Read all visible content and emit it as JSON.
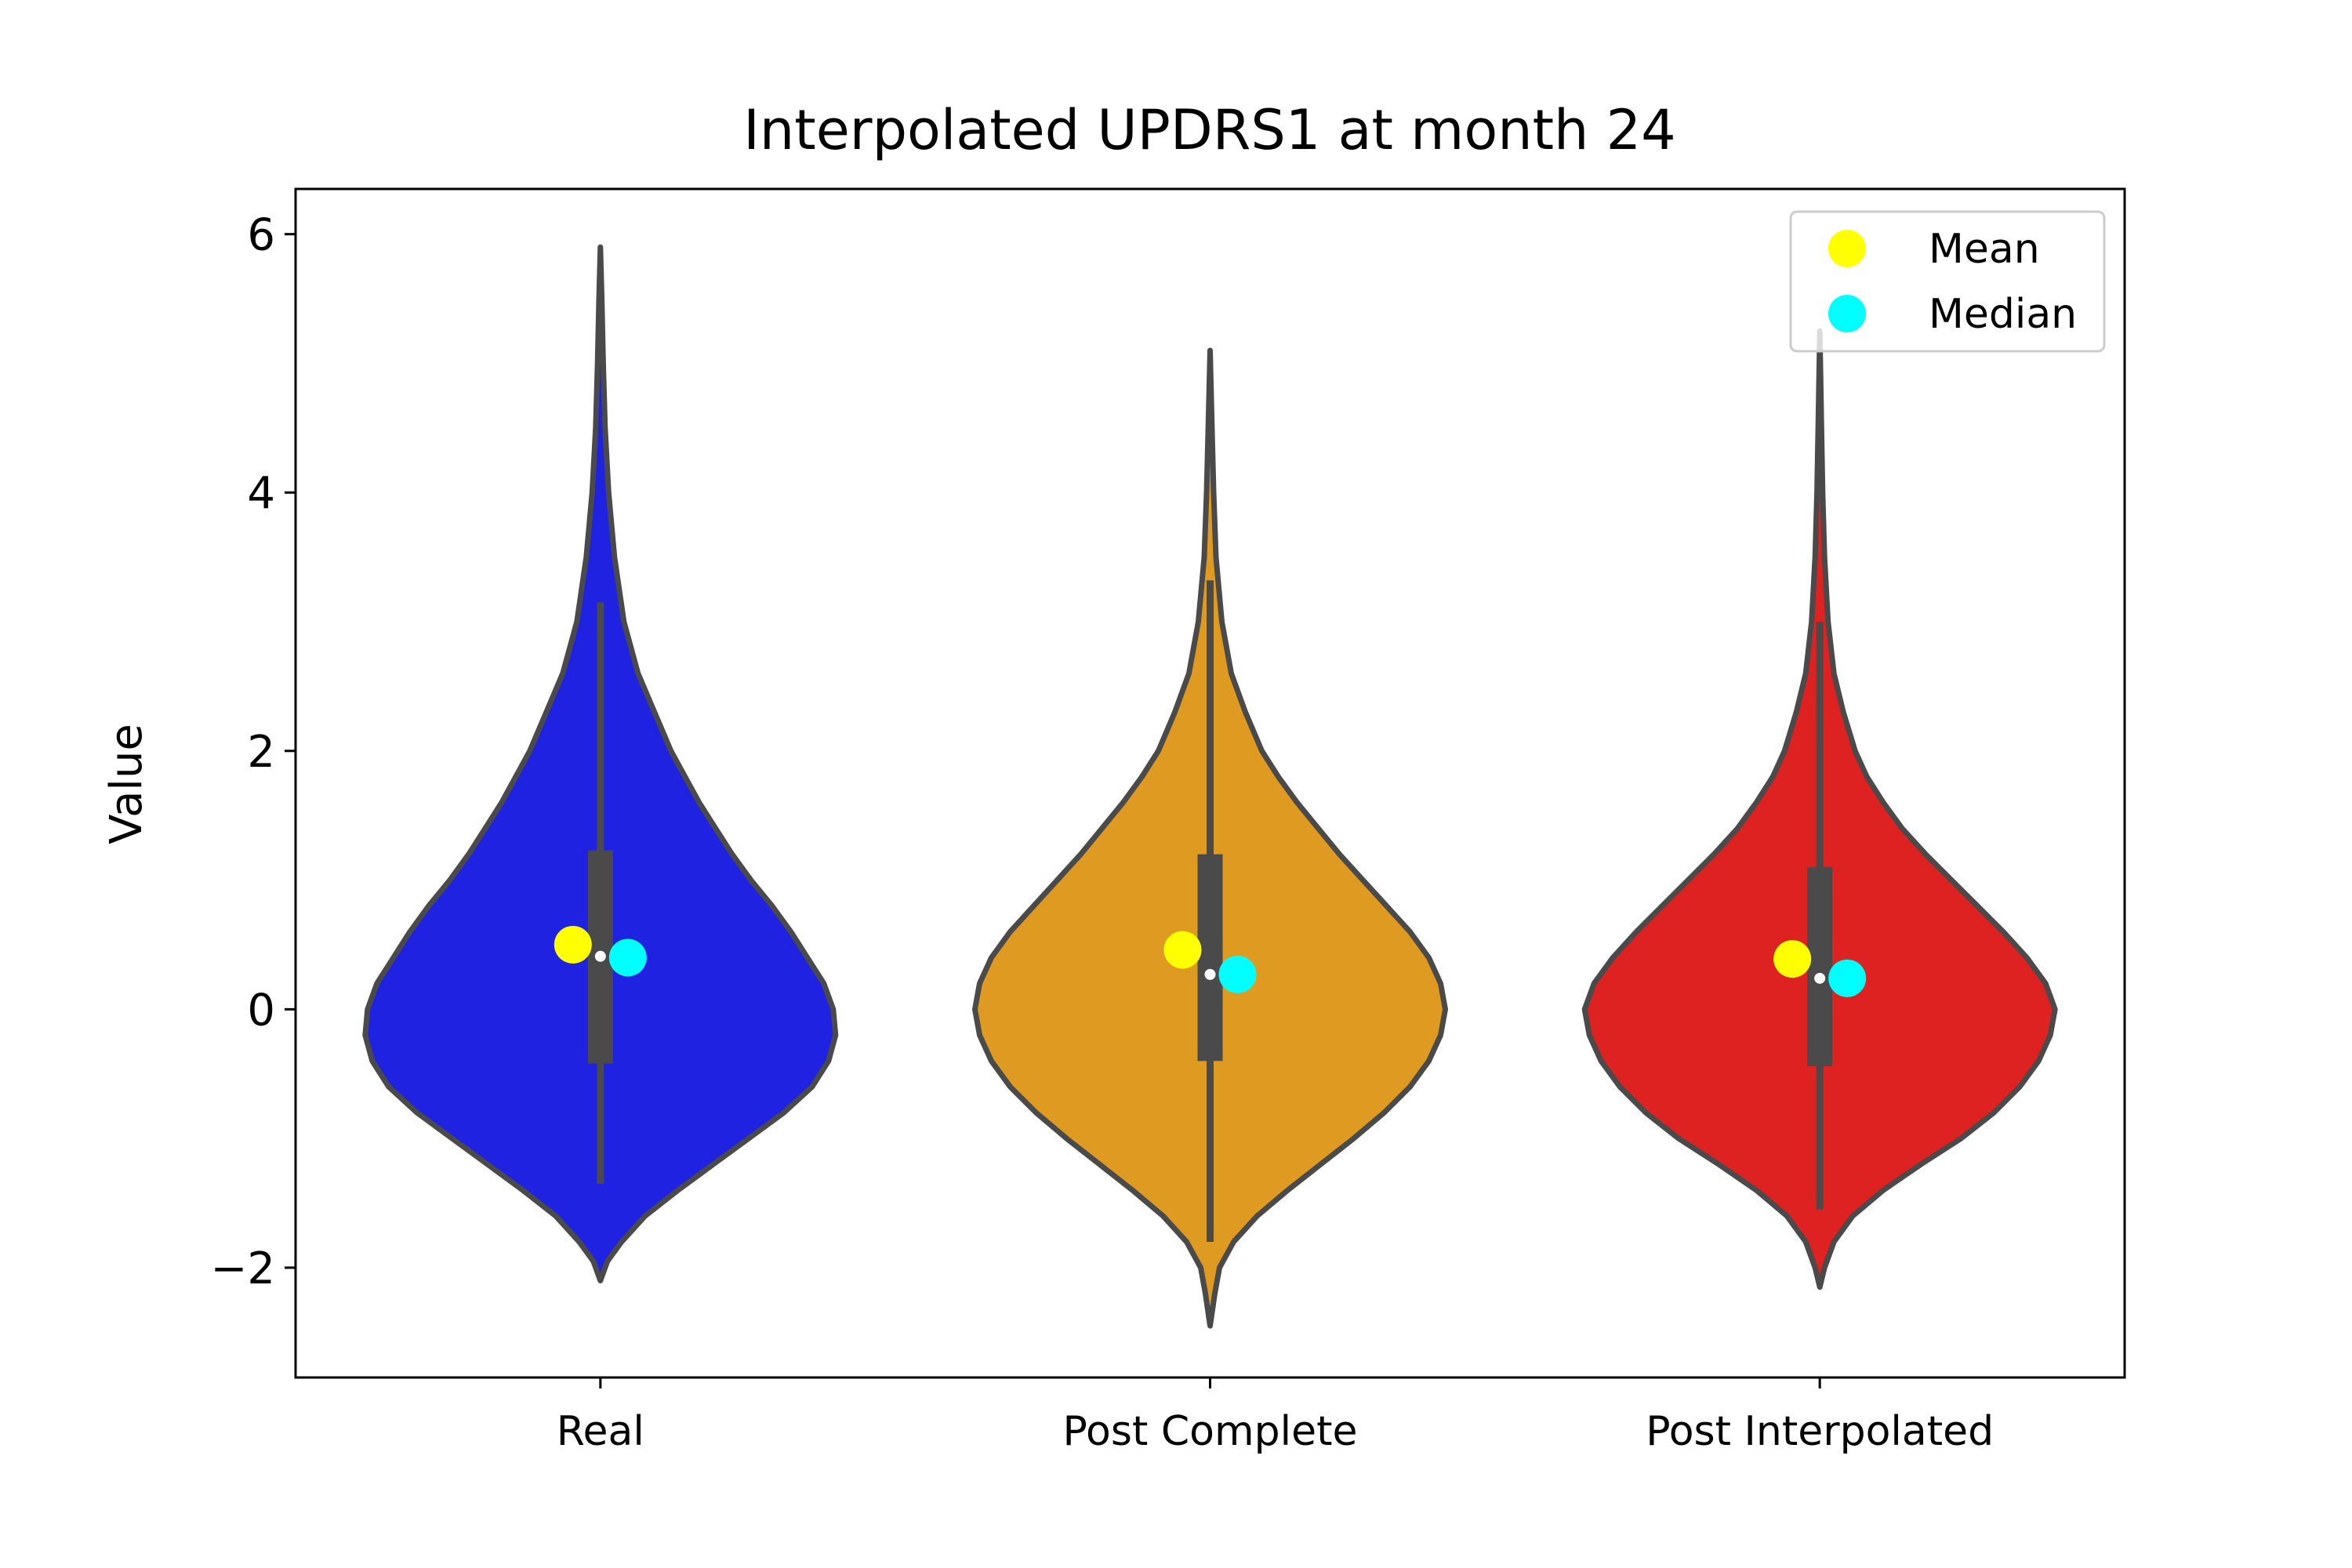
{
  "chart_data": {
    "type": "violin",
    "title": "Interpolated UPDRS1 at month 24",
    "xlabel": "",
    "ylabel": "Value",
    "ylim": [
      -2.85,
      6.35
    ],
    "yticks": [
      -2,
      0,
      2,
      4,
      6
    ],
    "ytick_labels": [
      "−2",
      "0",
      "2",
      "4",
      "6"
    ],
    "grid": false,
    "legend": {
      "position": "top-right",
      "entries": [
        {
          "label": "Mean",
          "color": "#ffff00"
        },
        {
          "label": "Median",
          "color": "#00ffff"
        }
      ]
    },
    "categories": [
      "Real",
      "Post Complete",
      "Post Interpolated"
    ],
    "series": [
      {
        "category": "Real",
        "color": "#1f22e0",
        "min": -2.1,
        "max": 5.9,
        "q1": -0.42,
        "median": 0.41,
        "q3": 1.23,
        "whisker_low": -1.35,
        "whisker_high": 3.15,
        "mean_marker": 0.5,
        "median_marker": 0.4,
        "density": [
          [
            -2.1,
            0.0
          ],
          [
            -1.95,
            0.03
          ],
          [
            -1.8,
            0.09
          ],
          [
            -1.6,
            0.19
          ],
          [
            -1.4,
            0.33
          ],
          [
            -1.2,
            0.48
          ],
          [
            -1.0,
            0.63
          ],
          [
            -0.8,
            0.78
          ],
          [
            -0.6,
            0.9
          ],
          [
            -0.4,
            0.97
          ],
          [
            -0.2,
            1.0
          ],
          [
            0.0,
            0.99
          ],
          [
            0.2,
            0.95
          ],
          [
            0.4,
            0.88
          ],
          [
            0.6,
            0.81
          ],
          [
            0.8,
            0.73
          ],
          [
            1.0,
            0.64
          ],
          [
            1.2,
            0.56
          ],
          [
            1.4,
            0.49
          ],
          [
            1.6,
            0.42
          ],
          [
            1.8,
            0.36
          ],
          [
            2.0,
            0.3
          ],
          [
            2.3,
            0.23
          ],
          [
            2.6,
            0.16
          ],
          [
            3.0,
            0.1
          ],
          [
            3.5,
            0.06
          ],
          [
            4.0,
            0.035
          ],
          [
            4.5,
            0.02
          ],
          [
            5.0,
            0.012
          ],
          [
            5.5,
            0.006
          ],
          [
            5.9,
            0.0
          ]
        ]
      },
      {
        "category": "Post Complete",
        "color": "#df9b21",
        "min": -2.45,
        "max": 5.1,
        "q1": -0.4,
        "median": 0.27,
        "q3": 1.2,
        "whisker_low": -1.8,
        "whisker_high": 3.32,
        "mean_marker": 0.46,
        "median_marker": 0.27,
        "density": [
          [
            -2.45,
            0.0
          ],
          [
            -2.2,
            0.02
          ],
          [
            -2.0,
            0.04
          ],
          [
            -1.8,
            0.1
          ],
          [
            -1.6,
            0.2
          ],
          [
            -1.4,
            0.33
          ],
          [
            -1.2,
            0.47
          ],
          [
            -1.0,
            0.61
          ],
          [
            -0.8,
            0.74
          ],
          [
            -0.6,
            0.85
          ],
          [
            -0.4,
            0.93
          ],
          [
            -0.2,
            0.98
          ],
          [
            0.0,
            1.0
          ],
          [
            0.2,
            0.98
          ],
          [
            0.4,
            0.93
          ],
          [
            0.6,
            0.85
          ],
          [
            0.8,
            0.75
          ],
          [
            1.0,
            0.65
          ],
          [
            1.2,
            0.55
          ],
          [
            1.4,
            0.46
          ],
          [
            1.6,
            0.37
          ],
          [
            1.8,
            0.29
          ],
          [
            2.0,
            0.22
          ],
          [
            2.3,
            0.15
          ],
          [
            2.6,
            0.09
          ],
          [
            3.0,
            0.05
          ],
          [
            3.5,
            0.025
          ],
          [
            4.0,
            0.015
          ],
          [
            4.5,
            0.008
          ],
          [
            5.1,
            0.0
          ]
        ]
      },
      {
        "category": "Post Interpolated",
        "color": "#de2121",
        "min": -2.15,
        "max": 5.25,
        "q1": -0.44,
        "median": 0.24,
        "q3": 1.1,
        "whisker_low": -1.55,
        "whisker_high": 3.0,
        "mean_marker": 0.39,
        "median_marker": 0.24,
        "density": [
          [
            -2.15,
            0.0
          ],
          [
            -2.0,
            0.02
          ],
          [
            -1.8,
            0.06
          ],
          [
            -1.6,
            0.14
          ],
          [
            -1.4,
            0.27
          ],
          [
            -1.2,
            0.43
          ],
          [
            -1.0,
            0.6
          ],
          [
            -0.8,
            0.74
          ],
          [
            -0.6,
            0.85
          ],
          [
            -0.4,
            0.93
          ],
          [
            -0.2,
            0.98
          ],
          [
            0.0,
            1.0
          ],
          [
            0.2,
            0.96
          ],
          [
            0.4,
            0.88
          ],
          [
            0.6,
            0.78
          ],
          [
            0.8,
            0.67
          ],
          [
            1.0,
            0.56
          ],
          [
            1.2,
            0.45
          ],
          [
            1.4,
            0.35
          ],
          [
            1.6,
            0.27
          ],
          [
            1.8,
            0.2
          ],
          [
            2.0,
            0.15
          ],
          [
            2.3,
            0.1
          ],
          [
            2.6,
            0.06
          ],
          [
            3.0,
            0.035
          ],
          [
            3.5,
            0.02
          ],
          [
            4.0,
            0.012
          ],
          [
            4.5,
            0.007
          ],
          [
            5.25,
            0.0
          ]
        ]
      }
    ]
  }
}
